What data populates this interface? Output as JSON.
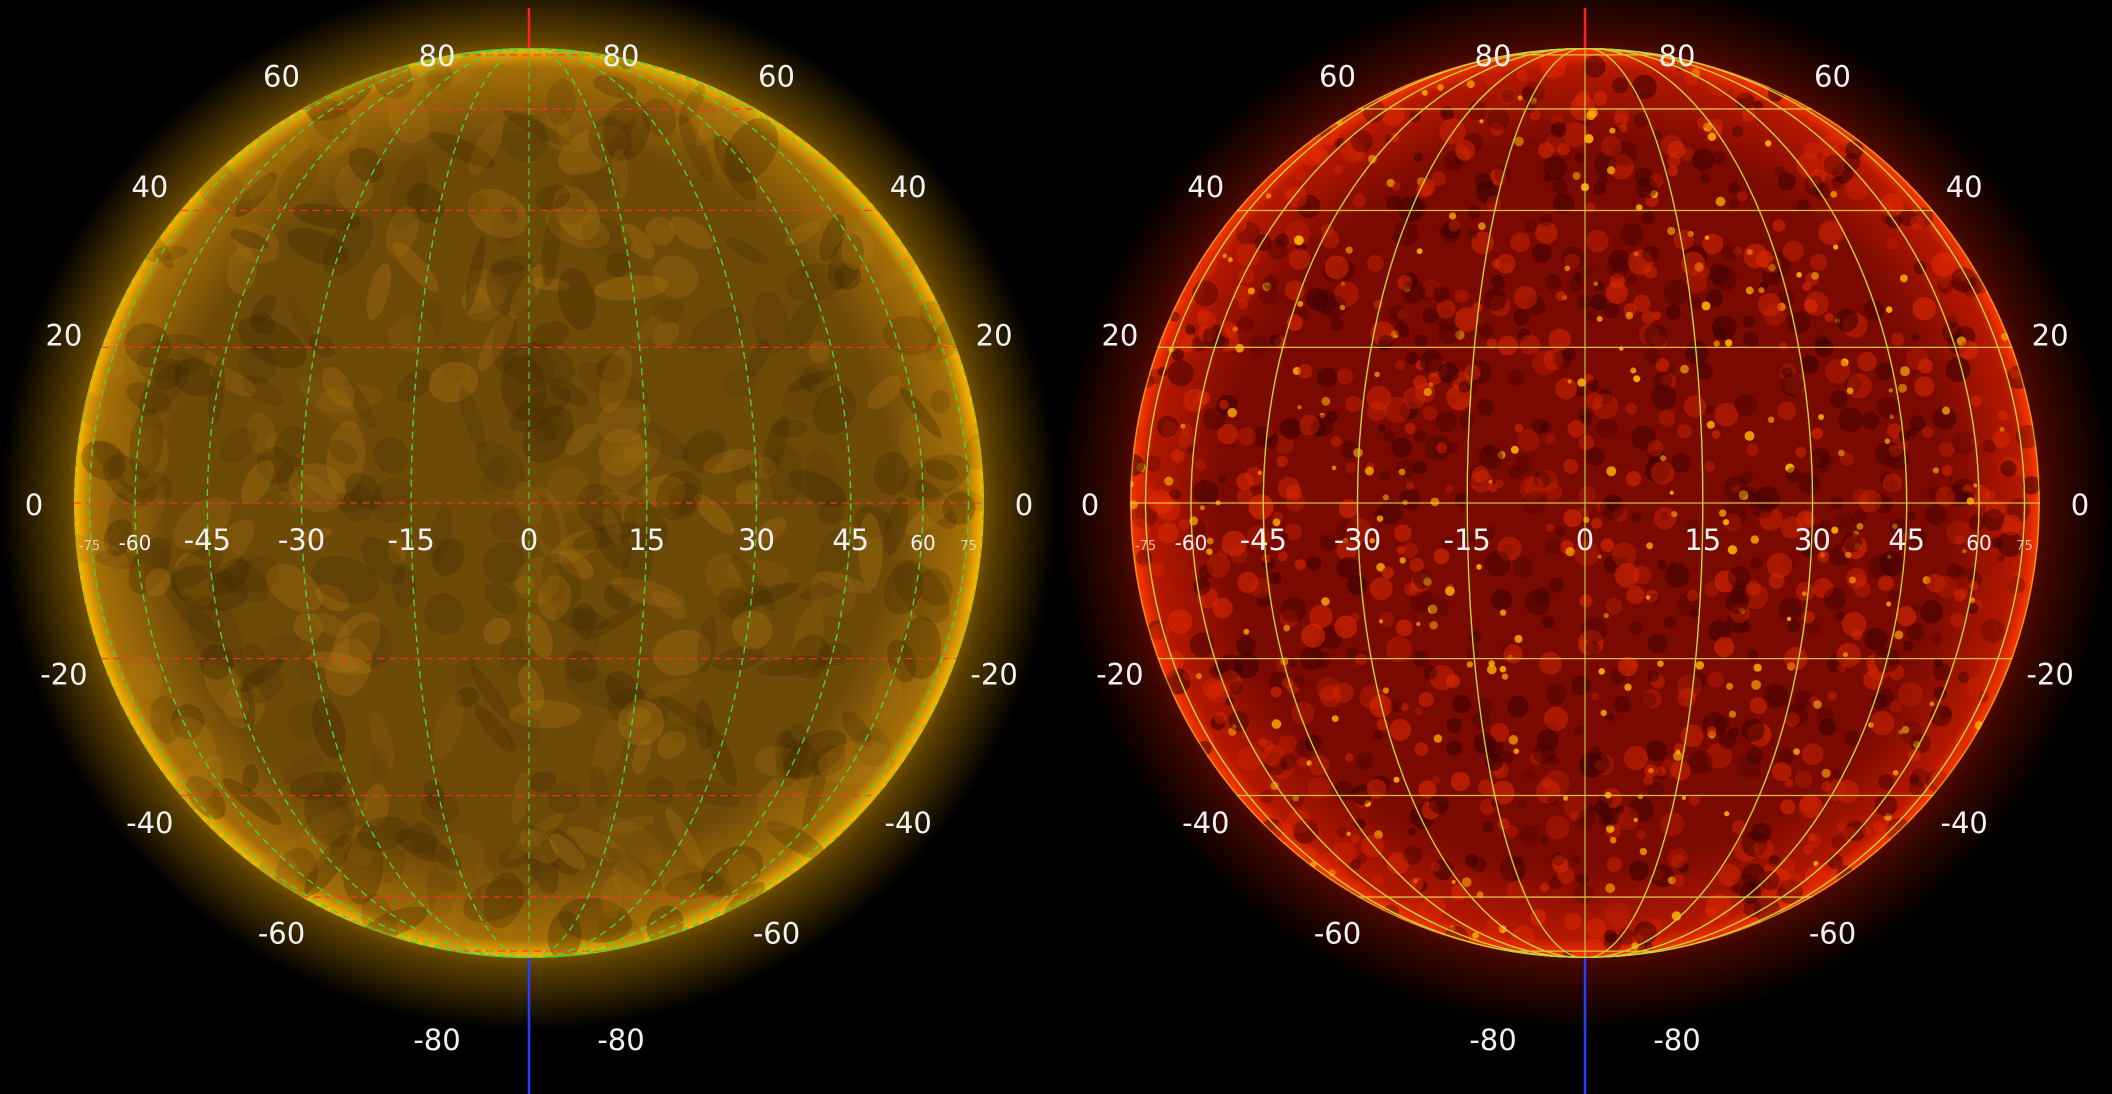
{
  "panels": [
    {
      "id": "left",
      "style": "aia-171-gold",
      "colors": {
        "disk_center": "#6e4a08",
        "disk_edge": "#a56f08",
        "limb": "#ffb800",
        "corona": "#c78a00",
        "parallel": "#ff3030",
        "meridian": "#4cd23c",
        "pole_north": "#ff2020",
        "pole_south": "#2b3cff"
      },
      "latitude_labels_left": [
        "80",
        "60",
        "40",
        "20",
        "0",
        "-20",
        "-40",
        "-60",
        "-80"
      ],
      "latitude_labels_right": [
        "80",
        "60",
        "40",
        "20",
        "0",
        "-20",
        "-40",
        "-60",
        "-80"
      ],
      "longitude_labels": [
        "-75",
        "-60",
        "-45",
        "-30",
        "-15",
        "0",
        "15",
        "30",
        "45",
        "60",
        "75"
      ]
    },
    {
      "id": "right",
      "style": "aia-304-red",
      "colors": {
        "disk_center": "#7a0a00",
        "disk_edge": "#b51800",
        "limb": "#ff3a00",
        "corona": "#8a1000",
        "parallel": "#e8d040",
        "meridian": "#c8d43c",
        "pole_north": "#ff2020",
        "pole_south": "#2b3cff"
      },
      "latitude_labels_left": [
        "80",
        "60",
        "40",
        "20",
        "0",
        "-20",
        "-40",
        "-60",
        "-80"
      ],
      "latitude_labels_right": [
        "80",
        "60",
        "40",
        "20",
        "0",
        "-20",
        "-40",
        "-60",
        "-80"
      ],
      "longitude_labels": [
        "-75",
        "-60",
        "-45",
        "-30",
        "-15",
        "0",
        "15",
        "30",
        "45",
        "60",
        "75"
      ]
    }
  ],
  "grid": {
    "latitudes": [
      80,
      60,
      40,
      20,
      0,
      -20,
      -40,
      -60,
      -80
    ],
    "longitudes": [
      -75,
      -60,
      -45,
      -30,
      -15,
      0,
      15,
      30,
      45,
      60,
      75
    ]
  }
}
